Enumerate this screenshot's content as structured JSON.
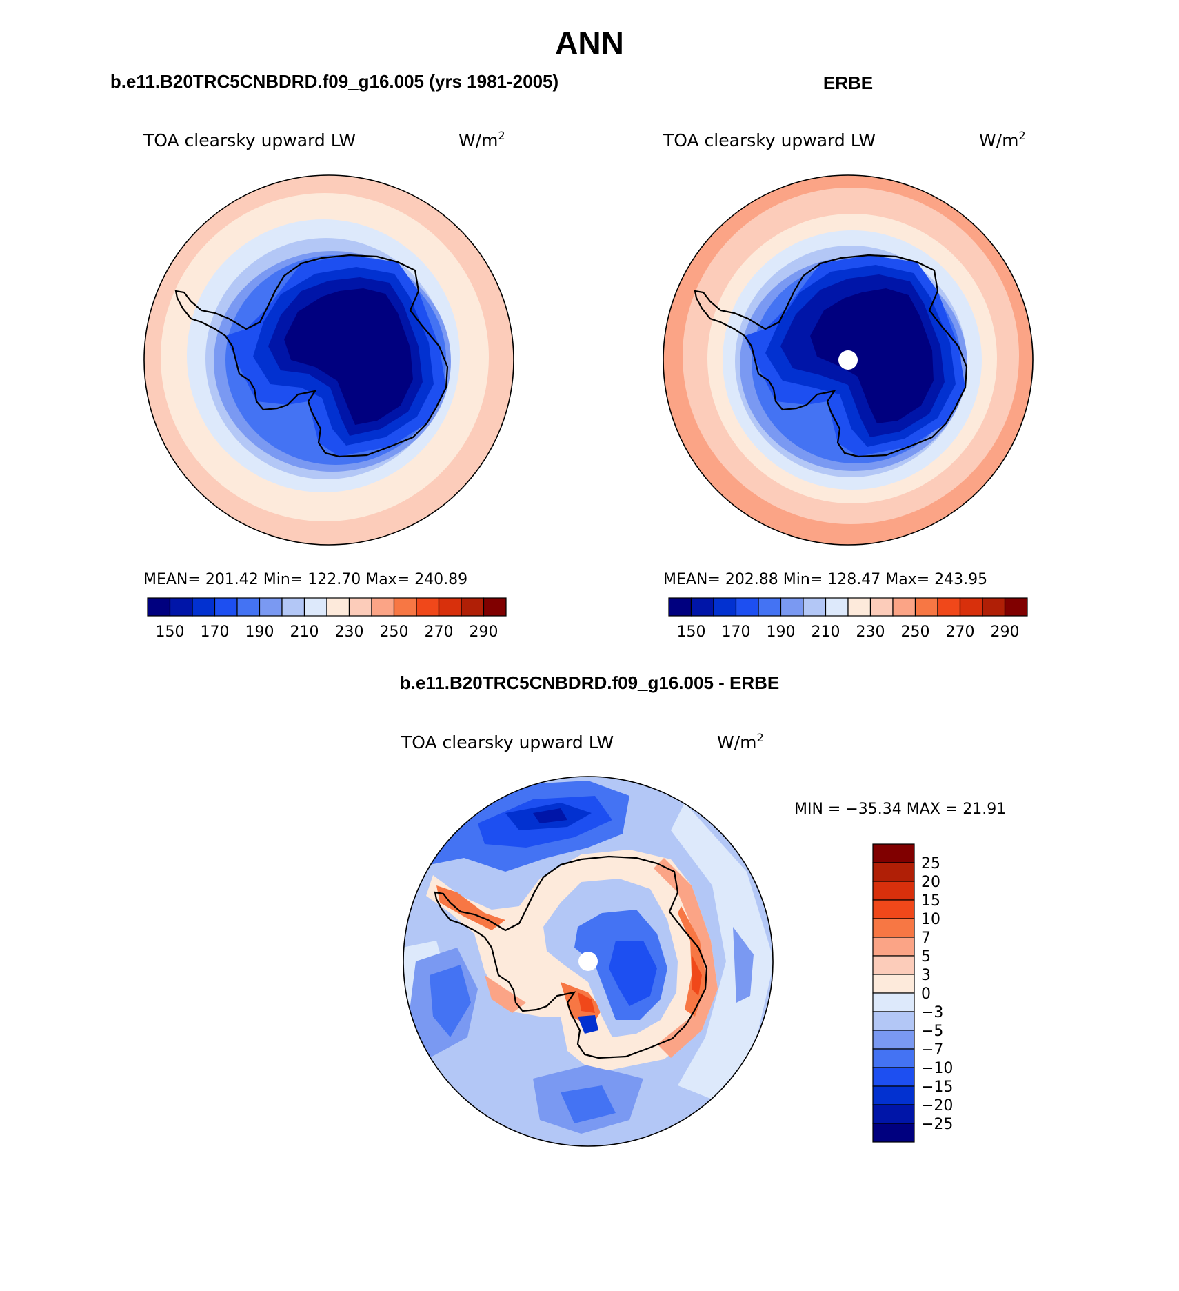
{
  "figure": {
    "title": "ANN",
    "colors": {
      "abs_scale": [
        "#00007f",
        "#0015a8",
        "#0231d0",
        "#1d4ff1",
        "#4473f3",
        "#7a99f2",
        "#b3c7f6",
        "#dde9fb",
        "#fdeadb",
        "#fcccba",
        "#fba486",
        "#f77744",
        "#f0481a",
        "#d8300c",
        "#b01f06",
        "#800000"
      ],
      "diff_scale": [
        "#00007f",
        "#0015a8",
        "#0231d0",
        "#1d4ff1",
        "#4473f3",
        "#7a99f2",
        "#b3c7f6",
        "#dde9fb",
        "#fdeadb",
        "#fcccba",
        "#fba486",
        "#f77744",
        "#f0481a",
        "#d8300c",
        "#b01f06",
        "#800000"
      ]
    },
    "icons": [
      "antarctica-coastline",
      "missing-data-pole-dot"
    ]
  },
  "panels": {
    "model": {
      "heading": "b.e11.B20TRC5CNBDRD.f09_g16.005 (yrs 1981-2005)",
      "variable": "TOA clearsky upward LW",
      "units_base": "W/m",
      "units_exp": "2",
      "stats": "MEAN=  201.42   Min=  122.70   Max=  240.89"
    },
    "obs": {
      "heading": "ERBE",
      "variable": "TOA clearsky upward LW",
      "units_base": "W/m",
      "units_exp": "2",
      "stats": "MEAN=  202.88   Min=  128.47   Max=  243.95"
    },
    "diff": {
      "heading": "b.e11.B20TRC5CNBDRD.f09_g16.005 - ERBE",
      "variable": "TOA clearsky upward LW",
      "units_base": "W/m",
      "units_exp": "2",
      "stats": "MIN = −35.34  MAX =   21.91"
    }
  },
  "colorbars": {
    "abs_tick_labels": [
      "150",
      "170",
      "190",
      "210",
      "230",
      "250",
      "270",
      "290"
    ],
    "diff_tick_labels": [
      "25",
      "20",
      "15",
      "10",
      "7",
      "5",
      "3",
      "0",
      "−3",
      "−5",
      "−7",
      "−10",
      "−15",
      "−20",
      "−25"
    ]
  }
}
